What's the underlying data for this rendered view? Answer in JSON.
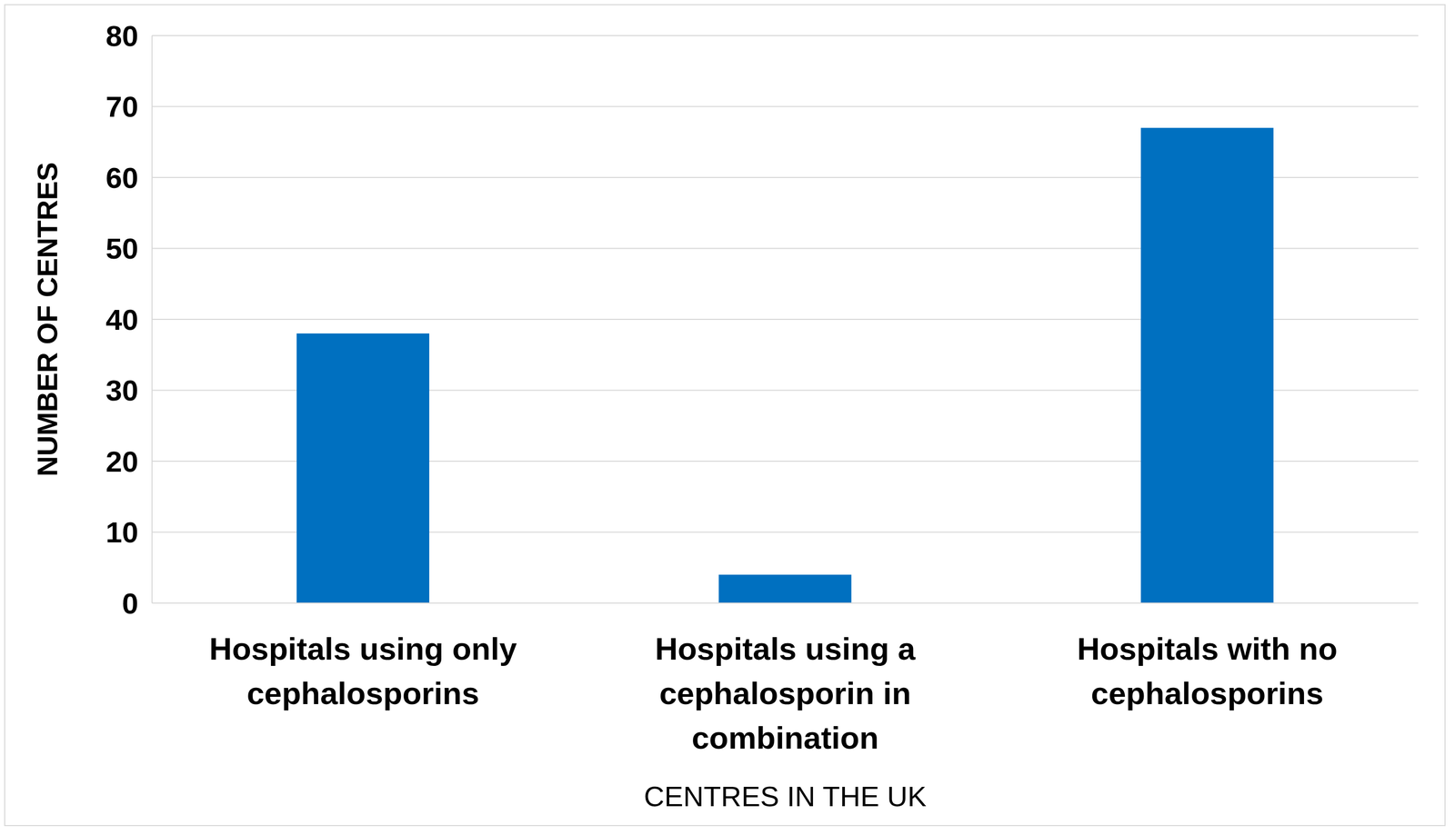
{
  "chart_data": {
    "type": "bar",
    "categories": [
      "Hospitals using only cephalosporins",
      "Hospitals using a cephalosporin in combination",
      "Hospitals with no cephalosporins"
    ],
    "values": [
      38,
      4,
      67
    ],
    "color": "#0070c0",
    "ylim": [
      0,
      80
    ],
    "yticks": [
      0,
      10,
      20,
      30,
      40,
      50,
      60,
      70,
      80
    ],
    "grid": true,
    "x_label": "CENTRES IN THE UK",
    "y_label": "NUMBER OF CENTRES"
  }
}
